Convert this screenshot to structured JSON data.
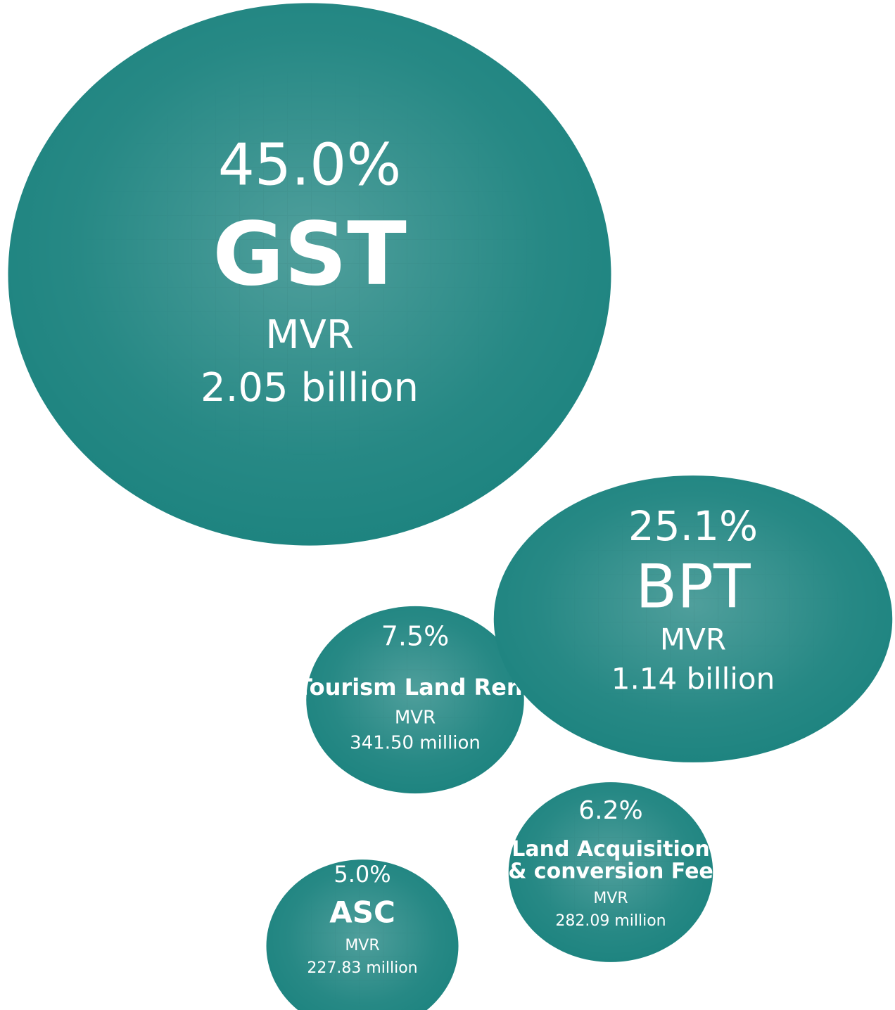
{
  "chart_data": {
    "type": "bubble",
    "categories": [
      "GST",
      "BPT",
      "Tourism Land Rent",
      "Land Acquisition & conversion Fee",
      "ASC"
    ],
    "values": [
      45.0,
      25.1,
      7.5,
      6.2,
      5.0
    ],
    "value_labels": [
      "45.0%",
      "25.1%",
      "7.5%",
      "6.2%",
      "5.0%"
    ],
    "unit": "MVR",
    "amounts": [
      "2.05 billion",
      "1.14 billion",
      "341.50 million",
      "282.09 million",
      "227.83 million"
    ],
    "color": "#1e8480"
  }
}
